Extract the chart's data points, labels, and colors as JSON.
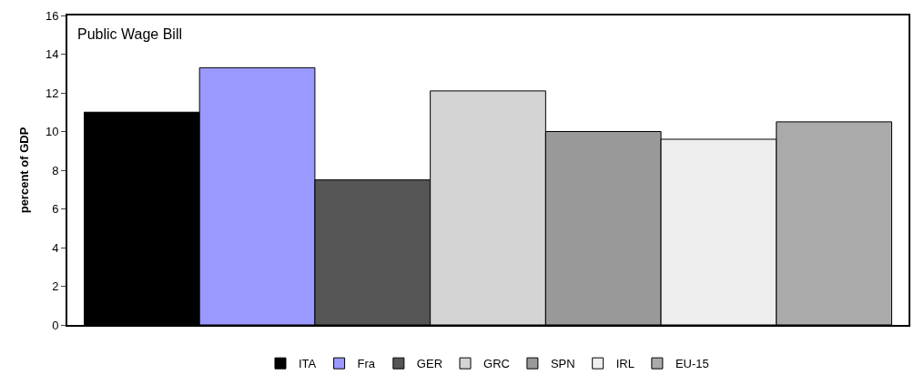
{
  "chart_data": {
    "type": "bar",
    "title": "Public Wage Bill",
    "ylabel": "percent of GDP",
    "categories": [
      null
    ],
    "series": [
      {
        "name": "ITA",
        "color": "#000000",
        "values": [
          11.0
        ]
      },
      {
        "name": "Fra",
        "color": "#9999ff",
        "values": [
          13.3
        ]
      },
      {
        "name": "GER",
        "color": "#555555",
        "values": [
          7.5
        ]
      },
      {
        "name": "GRC",
        "color": "#d4d4d4",
        "values": [
          12.1
        ]
      },
      {
        "name": "SPN",
        "color": "#999999",
        "values": [
          10.0
        ]
      },
      {
        "name": "IRL",
        "color": "#eeeeee",
        "values": [
          9.6
        ]
      },
      {
        "name": "EU-15",
        "color": "#aaaaaa",
        "values": [
          10.5
        ]
      }
    ],
    "ylim": [
      0,
      16
    ],
    "yticks": [
      0,
      2,
      4,
      6,
      8,
      10,
      12,
      14,
      16
    ],
    "legend": "bottom",
    "tick_labels": "y"
  }
}
